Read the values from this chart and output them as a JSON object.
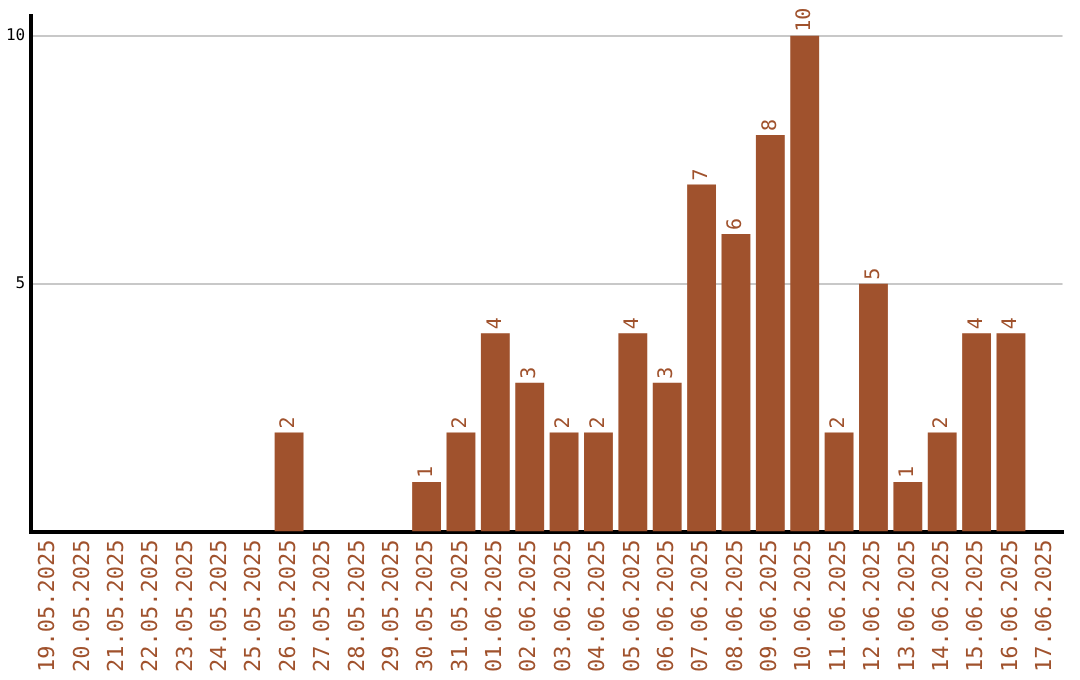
{
  "chart_data": {
    "type": "bar",
    "categories": [
      "19.05.2025",
      "20.05.2025",
      "21.05.2025",
      "22.05.2025",
      "23.05.2025",
      "24.05.2025",
      "25.05.2025",
      "26.05.2025",
      "27.05.2025",
      "28.05.2025",
      "29.05.2025",
      "30.05.2025",
      "31.05.2025",
      "01.06.2025",
      "02.06.2025",
      "03.06.2025",
      "04.06.2025",
      "05.06.2025",
      "06.06.2025",
      "07.06.2025",
      "08.06.2025",
      "09.06.2025",
      "10.06.2025",
      "11.06.2025",
      "12.06.2025",
      "13.06.2025",
      "14.06.2025",
      "15.06.2025",
      "16.06.2025",
      "17.06.2025"
    ],
    "values": [
      0,
      0,
      0,
      0,
      0,
      0,
      0,
      2,
      0,
      0,
      0,
      1,
      2,
      4,
      3,
      2,
      2,
      4,
      3,
      7,
      6,
      8,
      10,
      2,
      5,
      1,
      2,
      4,
      4,
      0
    ],
    "value_labels": [
      null,
      null,
      null,
      null,
      null,
      null,
      null,
      "2",
      null,
      null,
      null,
      "1",
      "2",
      "4",
      "3",
      "2",
      "2",
      "4",
      "3",
      "7",
      "6",
      "8",
      "10",
      "2",
      "5",
      "1",
      "2",
      "4",
      "4",
      null
    ],
    "color": "#a0522d",
    "ylim": [
      0,
      10.4
    ],
    "yticks": [
      5,
      10
    ],
    "grid": "y",
    "legend": false
  }
}
